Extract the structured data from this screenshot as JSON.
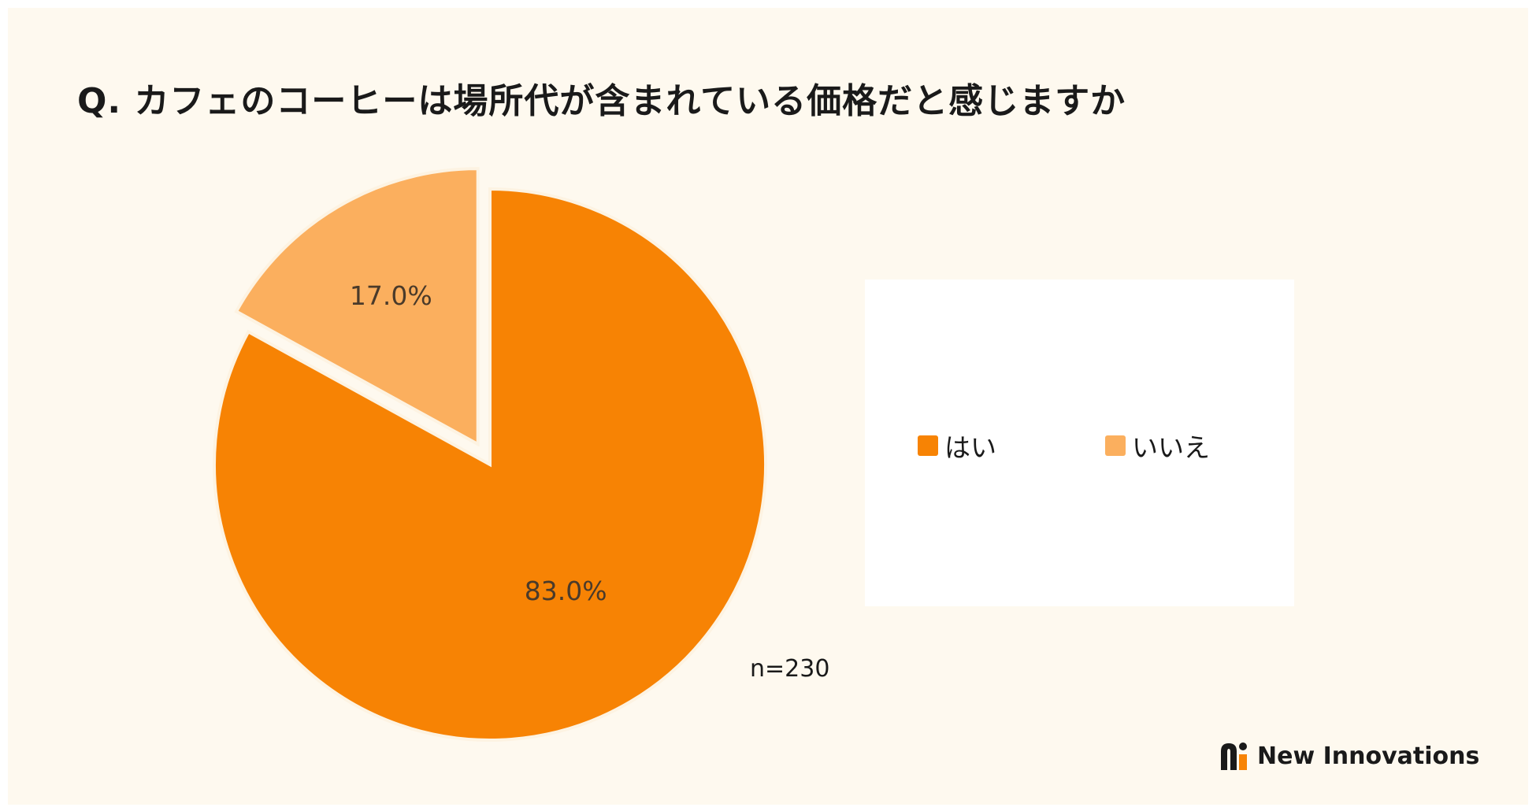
{
  "title": "Q. カフェのコーヒーは場所代が含まれている価格だと感じますか",
  "chart_data": {
    "type": "pie",
    "title": "Q. カフェのコーヒーは場所代が含まれている価格だと感じますか",
    "categories": [
      "はい",
      "いいえ"
    ],
    "values": [
      83.0,
      17.0
    ],
    "labels": [
      "83.0%",
      "17.0%"
    ],
    "colors": [
      "#f78304",
      "#fbaf5e"
    ],
    "exploded": [
      "いいえ"
    ],
    "legend_position": "right",
    "annotation": "n=230"
  },
  "legend": {
    "items": [
      {
        "label": "はい",
        "color": "#f78304"
      },
      {
        "label": "いいえ",
        "color": "#fbaf5e"
      }
    ]
  },
  "sample_size": "n=230",
  "brand": {
    "name": "New Innovations",
    "logo_icon": "new-innovations-logo-icon"
  }
}
